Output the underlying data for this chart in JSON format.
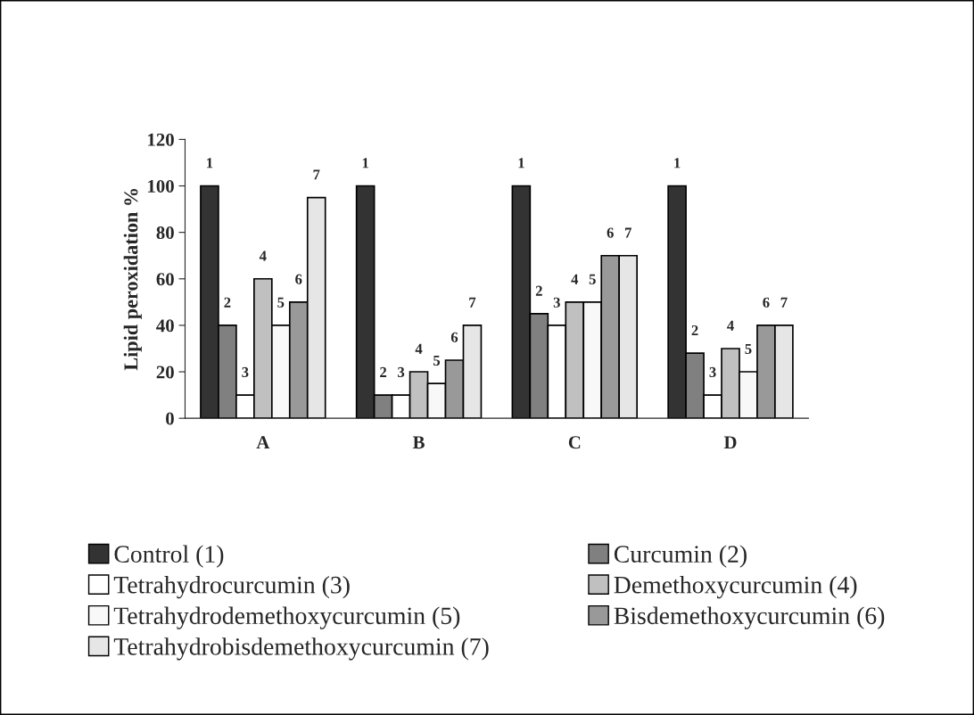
{
  "chart_data": {
    "type": "bar",
    "ylabel": "Lipid peroxidation %",
    "categories": [
      "A",
      "B",
      "C",
      "D"
    ],
    "series": [
      {
        "name": "Control (1)",
        "color": "#333333",
        "values": [
          100,
          100,
          100,
          100
        ]
      },
      {
        "name": "Curcumin (2)",
        "color": "#808080",
        "values": [
          40,
          10,
          45,
          28
        ]
      },
      {
        "name": "Tetrahydrocurcumin (3)",
        "color": "#ffffff",
        "values": [
          10,
          10,
          40,
          10
        ]
      },
      {
        "name": "Demethoxycurcumin (4)",
        "color": "#c0c0c0",
        "values": [
          60,
          20,
          50,
          30
        ]
      },
      {
        "name": "Tetrahydrodemethoxycurcumin (5)",
        "color": "#f8f8f8",
        "values": [
          40,
          15,
          50,
          20
        ]
      },
      {
        "name": "Bisdemethoxycurcumin (6)",
        "color": "#999999",
        "values": [
          50,
          25,
          70,
          40
        ]
      },
      {
        "name": "Tetrahydrobisdemethoxycurcumin (7)",
        "color": "#e6e6e6",
        "values": [
          95,
          40,
          70,
          40
        ]
      }
    ],
    "annotations": [
      "1",
      "2",
      "3",
      "4",
      "5",
      "6",
      "7",
      "1",
      "2",
      "3",
      "4",
      "5",
      "6",
      "7",
      "1",
      "2",
      "3",
      "4",
      "5",
      "6",
      "7",
      "1",
      "2",
      "3",
      "4",
      "5",
      "6",
      "7"
    ],
    "ylim": [
      0,
      120
    ],
    "yticks": [
      0,
      20,
      40,
      60,
      80,
      100,
      120
    ],
    "grid": false,
    "legend": "bottom"
  }
}
